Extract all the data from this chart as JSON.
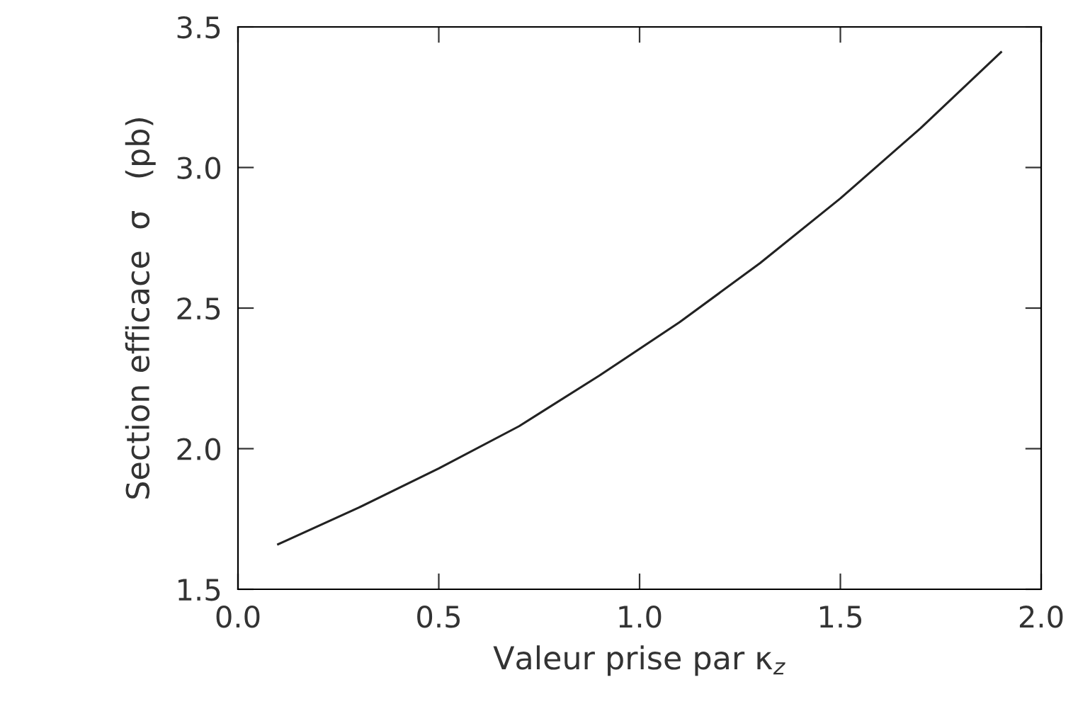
{
  "chart_data": {
    "type": "line",
    "xlabel": "Valeur prise par κ$_{z}$",
    "ylabel": "Section efficace  σ   (pb)",
    "series": [
      {
        "color": "#222222",
        "x": [
          0.1,
          0.3,
          0.5,
          0.7,
          0.9,
          1.1,
          1.3,
          1.5,
          1.7,
          1.9
        ],
        "values": [
          1.66,
          1.79,
          1.93,
          2.08,
          2.26,
          2.45,
          2.66,
          2.89,
          3.14,
          3.41
        ]
      }
    ],
    "xlim": [
      0,
      2
    ],
    "ylim": [
      1.5,
      3.5
    ],
    "xticks": [
      {
        "value": 0,
        "label": "0.0"
      },
      {
        "value": 0.5,
        "label": "0.5"
      },
      {
        "value": 1,
        "label": "1.0"
      },
      {
        "value": 1.5,
        "label": "1.5"
      },
      {
        "value": 2,
        "label": "2.0"
      }
    ],
    "yticks": [
      {
        "value": 1.5,
        "label": "1.5"
      },
      {
        "value": 2,
        "label": "2.0"
      },
      {
        "value": 2.5,
        "label": "2.5"
      },
      {
        "value": 3,
        "label": "3.0"
      },
      {
        "value": 3.5,
        "label": "3.5"
      }
    ],
    "grid": false,
    "legend": false,
    "marker": "none",
    "line_style": "solid"
  }
}
